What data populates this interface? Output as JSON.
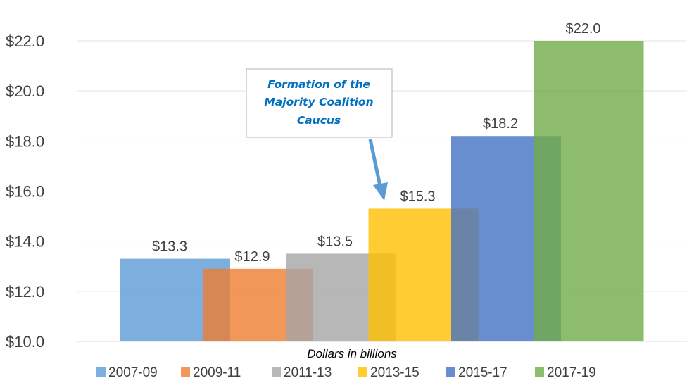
{
  "chart_data": {
    "type": "bar",
    "categories": [
      "2007-09",
      "2009-11",
      "2011-13",
      "2013-15",
      "2015-17",
      "2017-19"
    ],
    "values": [
      13.3,
      12.9,
      13.5,
      15.3,
      18.2,
      22.0
    ],
    "data_labels": [
      "$13.3",
      "$12.9",
      "$13.5",
      "$15.3",
      "$18.2",
      "$22.0"
    ],
    "colors": [
      "#5b9bd5",
      "#ed7d31",
      "#a5a5a5",
      "#ffc000",
      "#4472c4",
      "#70ad47"
    ],
    "ylim": [
      10,
      22
    ],
    "yticks": [
      10,
      12,
      14,
      16,
      18,
      20,
      22
    ],
    "ytick_labels": [
      "$10.0",
      "$12.0",
      "$14.0",
      "$16.0",
      "$18.0",
      "$20.0",
      "$22.0"
    ],
    "xlabel": "Dollars in billions",
    "ylabel": "",
    "title": "",
    "grid": true,
    "legend": {
      "position": "bottom",
      "entries": [
        "2007-09",
        "2009-11",
        "2011-13",
        "2013-15",
        "2015-17",
        "2017-19"
      ]
    },
    "annotation": {
      "lines": [
        "Formation of the",
        "Majority Coalition",
        "Caucus"
      ],
      "color": "#0070c0",
      "points_to": "2013-15"
    }
  }
}
